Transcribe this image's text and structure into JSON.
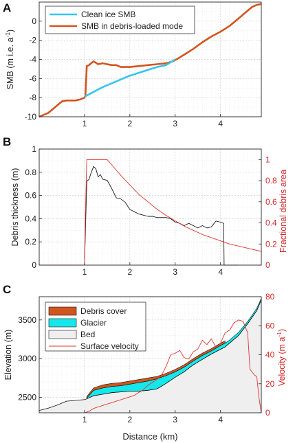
{
  "chart_data": [
    {
      "panel": "A",
      "type": "line",
      "xlabel": "",
      "ylabel": "SMB (m i.e. a",
      "ylabel_sup": "-1",
      "ylabel_close": ")",
      "xlim": [
        0,
        4.9
      ],
      "ylim": [
        -10,
        2
      ],
      "xticks": [
        1,
        2,
        3,
        4
      ],
      "yticks": [
        0,
        -2,
        -4,
        -6,
        -8,
        -10
      ],
      "grid": true,
      "legend_position": "top-left",
      "series": [
        {
          "name": "Clean ice SMB",
          "color": "#35c5ef",
          "x": [
            1.0,
            1.2,
            1.4,
            1.6,
            1.8,
            2.0,
            2.2,
            2.4,
            2.6,
            2.8,
            3.0
          ],
          "y": [
            -7.9,
            -7.4,
            -6.9,
            -6.5,
            -6.1,
            -5.7,
            -5.4,
            -5.1,
            -4.8,
            -4.6,
            -4.0
          ]
        },
        {
          "name": "SMB in debris-loaded mode",
          "color": "#d2541e",
          "x": [
            0.0,
            0.05,
            0.1,
            0.2,
            0.3,
            0.4,
            0.5,
            0.6,
            0.7,
            0.8,
            0.9,
            1.0,
            1.02,
            1.05,
            1.1,
            1.2,
            1.3,
            1.4,
            1.5,
            1.6,
            1.7,
            1.8,
            1.9,
            2.0,
            2.2,
            2.4,
            2.6,
            2.8,
            2.95,
            3.1,
            3.2,
            3.4,
            3.6,
            3.8,
            4.0,
            4.2,
            4.4,
            4.6,
            4.7,
            4.8,
            4.9
          ],
          "y": [
            -10.0,
            -9.9,
            -9.8,
            -9.6,
            -9.2,
            -8.8,
            -8.4,
            -8.3,
            -8.3,
            -8.3,
            -8.2,
            -8.0,
            -7.8,
            -4.7,
            -4.6,
            -4.2,
            -4.5,
            -4.4,
            -4.5,
            -4.6,
            -4.6,
            -4.8,
            -4.8,
            -4.8,
            -4.7,
            -4.6,
            -4.5,
            -4.4,
            -4.2,
            -3.8,
            -3.5,
            -2.9,
            -2.2,
            -1.6,
            -1.1,
            -0.5,
            0.3,
            1.1,
            1.5,
            1.7,
            1.8
          ]
        }
      ]
    },
    {
      "panel": "B",
      "type": "line",
      "xlabel": "",
      "ylabel": "Debris thickness (m)",
      "ylabel_right": "Fractional debris area",
      "xlim": [
        0,
        4.9
      ],
      "ylim": [
        0,
        1
      ],
      "ylim_right": [
        0,
        1.1
      ],
      "xticks": [
        1,
        2,
        3,
        4
      ],
      "yticks": [
        0,
        0.2,
        0.4,
        0.6,
        0.8,
        1
      ],
      "yticks_right": [
        0,
        0.2,
        0.4,
        0.6,
        0.8,
        1
      ],
      "grid": true,
      "series": [
        {
          "name": "",
          "axis": "left",
          "color": "#1a1a1a",
          "x": [
            0.0,
            0.95,
            1.0,
            1.05,
            1.1,
            1.15,
            1.2,
            1.25,
            1.3,
            1.35,
            1.4,
            1.5,
            1.6,
            1.7,
            1.8,
            1.9,
            2.0,
            2.1,
            2.2,
            2.3,
            2.4,
            2.5,
            2.6,
            2.8,
            2.9,
            3.0,
            3.1,
            3.2,
            3.3,
            3.4,
            3.5,
            3.6,
            3.7,
            3.8,
            3.9,
            4.0,
            4.07,
            4.08,
            4.1,
            4.4
          ],
          "y": [
            0,
            0,
            0,
            0.72,
            0.74,
            0.8,
            0.85,
            0.83,
            0.76,
            0.78,
            0.74,
            0.73,
            0.66,
            0.58,
            0.57,
            0.54,
            0.48,
            0.46,
            0.44,
            0.43,
            0.42,
            0.42,
            0.41,
            0.41,
            0.4,
            0.37,
            0.36,
            0.34,
            0.36,
            0.34,
            0.32,
            0.34,
            0.32,
            0.33,
            0.38,
            0.37,
            0.36,
            0.0,
            0,
            0
          ]
        },
        {
          "name": "",
          "axis": "right",
          "color": "#e53030",
          "x": [
            0.0,
            0.95,
            1.0,
            1.02,
            1.05,
            1.5,
            1.6,
            1.8,
            2.0,
            2.2,
            2.4,
            2.6,
            2.8,
            3.0,
            3.2,
            3.4,
            3.6,
            3.8,
            4.0,
            4.2,
            4.4,
            4.6,
            4.9
          ],
          "y": [
            0,
            0,
            0.0,
            0.5,
            1.0,
            1.0,
            0.95,
            0.85,
            0.76,
            0.67,
            0.6,
            0.53,
            0.47,
            0.42,
            0.37,
            0.33,
            0.29,
            0.26,
            0.23,
            0.2,
            0.18,
            0.16,
            0.13
          ]
        }
      ]
    },
    {
      "panel": "C",
      "type": "area",
      "xlabel": "Distance (km)",
      "ylabel": "Elevation (m)",
      "ylabel_right": "Velocity (m a",
      "ylabel_right_sup": "-1",
      "ylabel_right_close": ")",
      "xlim": [
        0,
        4.9
      ],
      "ylim": [
        2300,
        3800
      ],
      "ylim_right": [
        0,
        80
      ],
      "xticks": [
        1,
        2,
        3,
        4
      ],
      "yticks": [
        2500,
        3000,
        3500
      ],
      "yticks_right": [
        0,
        20,
        40,
        60,
        80
      ],
      "grid": true,
      "legend_position": "top-left",
      "x": [
        0.0,
        0.2,
        0.4,
        0.6,
        0.8,
        1.0,
        1.05,
        1.2,
        1.4,
        1.6,
        1.8,
        2.0,
        2.2,
        2.4,
        2.6,
        2.8,
        3.0,
        3.2,
        3.4,
        3.6,
        3.8,
        4.0,
        4.1,
        4.2,
        4.4,
        4.6,
        4.8,
        4.9
      ],
      "bed": [
        2330,
        2360,
        2400,
        2450,
        2460,
        2470,
        2480,
        2520,
        2540,
        2560,
        2570,
        2580,
        2580,
        2590,
        2610,
        2680,
        2760,
        2830,
        2920,
        2990,
        3060,
        3120,
        3150,
        3200,
        3300,
        3450,
        3620,
        3760
      ],
      "glacier_surface": [
        null,
        null,
        null,
        null,
        null,
        null,
        2490,
        2590,
        2620,
        2640,
        2650,
        2670,
        2690,
        2710,
        2740,
        2780,
        2830,
        2890,
        2970,
        3040,
        3100,
        3170,
        3200,
        3240,
        3340,
        3480,
        3650,
        3780
      ],
      "debris_surface": [
        null,
        null,
        null,
        null,
        null,
        null,
        2510,
        2620,
        2660,
        2680,
        2690,
        2710,
        2730,
        2750,
        2770,
        2810,
        2860,
        2920,
        3000,
        3070,
        3130,
        3200,
        3230,
        null,
        null,
        null,
        null,
        null
      ],
      "legend": [
        {
          "name": "Debris cover",
          "color": "#d2541e"
        },
        {
          "name": "Glacier",
          "color": "#14e8ec"
        },
        {
          "name": "Bed",
          "color": "#efefef"
        },
        {
          "name": "Surface velocity",
          "color": "#e53030"
        }
      ],
      "velocity": {
        "color": "#e53030",
        "x": [
          1.0,
          1.1,
          1.2,
          1.3,
          1.4,
          1.5,
          1.6,
          1.7,
          1.8,
          1.9,
          2.0,
          2.1,
          2.2,
          2.3,
          2.4,
          2.5,
          2.6,
          2.7,
          2.8,
          2.9,
          3.0,
          3.1,
          3.2,
          3.3,
          3.4,
          3.5,
          3.6,
          3.7,
          3.8,
          3.9,
          4.0,
          4.1,
          4.2,
          4.3,
          4.4,
          4.5,
          4.6,
          4.65,
          4.7,
          4.75,
          4.8,
          4.85,
          4.9
        ],
        "y": [
          0,
          1,
          3,
          4,
          5,
          6,
          7,
          8,
          9,
          10,
          11,
          12,
          14,
          16,
          19,
          21,
          23,
          26,
          32,
          40,
          41,
          43,
          38,
          37,
          42,
          44,
          50,
          47,
          51,
          45,
          48,
          55,
          57,
          62,
          64,
          63,
          55,
          30,
          28,
          26,
          25,
          10,
          0
        ]
      }
    }
  ],
  "panel_labels": [
    "A",
    "B",
    "C"
  ]
}
